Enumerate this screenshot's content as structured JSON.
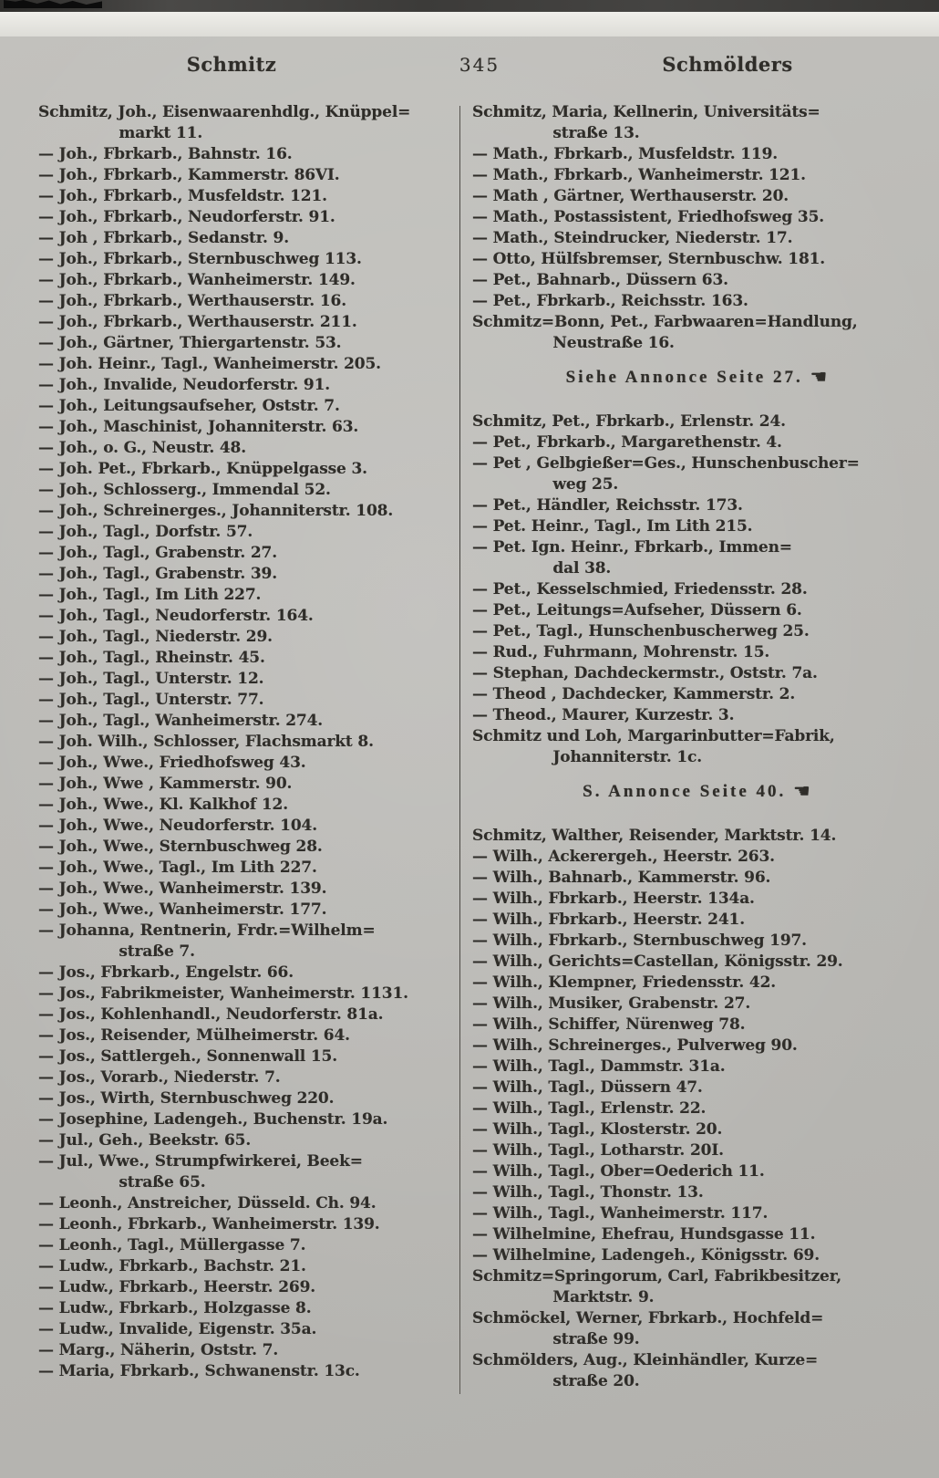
{
  "header": {
    "left_keyword": "Schmitz",
    "page_number": "345",
    "right_keyword": "Schmölders"
  },
  "annonce_icon": "☚",
  "columns": [
    {
      "entries": [
        {
          "text": "Schmitz, Joh., Eisenwaarenhdlg., Knüppel=\nmarkt 11."
        },
        {
          "text": "— Joh., Fbrkarb., Bahnstr. 16."
        },
        {
          "text": "— Joh., Fbrkarb., Kammerstr. 86VI."
        },
        {
          "text": "— Joh., Fbrkarb., Musfeldstr. 121."
        },
        {
          "text": "— Joh., Fbrkarb., Neudorferstr. 91."
        },
        {
          "text": "— Joh , Fbrkarb., Sedanstr. 9."
        },
        {
          "text": "— Joh., Fbrkarb., Sternbuschweg 113."
        },
        {
          "text": "— Joh., Fbrkarb., Wanheimerstr. 149."
        },
        {
          "text": "— Joh., Fbrkarb., Werthauserstr. 16."
        },
        {
          "text": "— Joh., Fbrkarb., Werthauserstr. 211."
        },
        {
          "text": "— Joh., Gärtner, Thiergartenstr. 53."
        },
        {
          "text": "— Joh. Heinr., Tagl., Wanheimerstr. 205."
        },
        {
          "text": "— Joh., Invalide, Neudorferstr. 91."
        },
        {
          "text": "— Joh., Leitungsaufseher, Oststr. 7."
        },
        {
          "text": "— Joh., Maschinist, Johanniterstr. 63."
        },
        {
          "text": "— Joh., o. G., Neustr. 48."
        },
        {
          "text": "— Joh. Pet., Fbrkarb., Knüppelgasse 3."
        },
        {
          "text": "— Joh., Schlosserg., Immendal 52."
        },
        {
          "text": "— Joh., Schreinerges., Johanniterstr. 108."
        },
        {
          "text": "— Joh., Tagl., Dorfstr. 57."
        },
        {
          "text": "— Joh., Tagl., Grabenstr. 27."
        },
        {
          "text": "— Joh., Tagl., Grabenstr. 39."
        },
        {
          "text": "— Joh., Tagl., Im Lith 227."
        },
        {
          "text": "— Joh., Tagl., Neudorferstr. 164."
        },
        {
          "text": "— Joh., Tagl., Niederstr. 29."
        },
        {
          "text": "— Joh., Tagl., Rheinstr. 45."
        },
        {
          "text": "— Joh., Tagl., Unterstr. 12."
        },
        {
          "text": "— Joh., Tagl., Unterstr. 77."
        },
        {
          "text": "— Joh., Tagl., Wanheimerstr. 274."
        },
        {
          "text": "— Joh. Wilh., Schlosser, Flachsmarkt 8."
        },
        {
          "text": "— Joh., Wwe., Friedhofsweg 43."
        },
        {
          "text": "— Joh., Wwe , Kammerstr. 90."
        },
        {
          "text": "— Joh., Wwe., Kl. Kalkhof 12."
        },
        {
          "text": "— Joh., Wwe., Neudorferstr. 104."
        },
        {
          "text": "— Joh., Wwe., Sternbuschweg 28."
        },
        {
          "text": "— Joh., Wwe., Tagl., Im Lith 227."
        },
        {
          "text": "— Joh., Wwe., Wanheimerstr. 139."
        },
        {
          "text": "— Joh., Wwe., Wanheimerstr. 177."
        },
        {
          "text": "— Johanna, Rentnerin, Frdr.=Wilhelm=\nstraße 7."
        },
        {
          "text": "— Jos., Fbrkarb., Engelstr. 66."
        },
        {
          "text": "— Jos., Fabrikmeister, Wanheimerstr. 1131."
        },
        {
          "text": "— Jos., Kohlenhandl., Neudorferstr. 81a."
        },
        {
          "text": "— Jos., Reisender, Mülheimerstr. 64."
        },
        {
          "text": "— Jos., Sattlergeh., Sonnenwall 15."
        },
        {
          "text": "— Jos., Vorarb., Niederstr. 7."
        },
        {
          "text": "— Jos., Wirth, Sternbuschweg 220."
        },
        {
          "text": "— Josephine, Ladengeh., Buchenstr. 19a."
        },
        {
          "text": "— Jul., Geh., Beekstr. 65."
        },
        {
          "text": "— Jul., Wwe., Strumpfwirkerei, Beek=\nstraße 65."
        },
        {
          "text": "— Leonh., Anstreicher, Düsseld. Ch. 94."
        },
        {
          "text": "— Leonh., Fbrkarb., Wanheimerstr. 139."
        },
        {
          "text": "— Leonh., Tagl., Müllergasse 7."
        },
        {
          "text": "— Ludw., Fbrkarb., Bachstr. 21."
        },
        {
          "text": "— Ludw., Fbrkarb., Heerstr. 269."
        },
        {
          "text": "— Ludw., Fbrkarb., Holzgasse 8."
        },
        {
          "text": "— Ludw., Invalide, Eigenstr. 35a."
        },
        {
          "text": "— Marg., Näherin, Oststr. 7."
        },
        {
          "text": "— Maria, Fbrkarb., Schwanenstr. 13c."
        }
      ]
    },
    {
      "entries": [
        {
          "text": "Schmitz, Maria, Kellnerin, Universitäts=\nstraße 13."
        },
        {
          "text": "— Math., Fbrkarb., Musfeldstr. 119."
        },
        {
          "text": "— Math., Fbrkarb., Wanheimerstr. 121."
        },
        {
          "text": "— Math , Gärtner, Werthauserstr. 20."
        },
        {
          "text": "— Math., Postassistent, Friedhofsweg 35."
        },
        {
          "text": "— Math., Steindrucker, Niederstr. 17."
        },
        {
          "text": "— Otto, Hülfsbremser, Sternbuschw. 181."
        },
        {
          "text": "— Pet., Bahnarb., Düssern 63."
        },
        {
          "text": "— Pet., Fbrkarb., Reichsstr. 163."
        },
        {
          "text": "Schmitz=Bonn, Pet., Farbwaaren=Handlung,\nNeustraße 16."
        },
        {
          "type": "annonce",
          "text": "Siehe Annonce Seite 27."
        },
        {
          "text": "Schmitz, Pet., Fbrkarb., Erlenstr. 24."
        },
        {
          "text": "— Pet., Fbrkarb., Margarethenstr. 4."
        },
        {
          "text": "— Pet , Gelbgießer=Ges., Hunschenbuscher=\nweg 25."
        },
        {
          "text": "— Pet., Händler, Reichsstr. 173."
        },
        {
          "text": "— Pet. Heinr., Tagl., Im Lith 215."
        },
        {
          "text": "— Pet. Ign. Heinr., Fbrkarb., Immen=\ndal 38."
        },
        {
          "text": "— Pet., Kesselschmied, Friedensstr. 28."
        },
        {
          "text": "— Pet., Leitungs=Aufseher, Düssern 6."
        },
        {
          "text": "— Pet., Tagl., Hunschenbuscherweg 25."
        },
        {
          "text": "— Rud., Fuhrmann, Mohrenstr. 15."
        },
        {
          "text": "— Stephan, Dachdeckermstr., Oststr. 7a."
        },
        {
          "text": "— Theod , Dachdecker, Kammerstr. 2."
        },
        {
          "text": "— Theod., Maurer, Kurzestr. 3."
        },
        {
          "text": "Schmitz und Loh, Margarinbutter=Fabrik,\nJohanniterstr. 1c."
        },
        {
          "type": "annonce",
          "text": "S. Annonce Seite 40."
        },
        {
          "text": "Schmitz, Walther, Reisender, Marktstr. 14."
        },
        {
          "text": "— Wilh., Ackerergeh., Heerstr. 263."
        },
        {
          "text": "— Wilh., Bahnarb., Kammerstr. 96."
        },
        {
          "text": "— Wilh., Fbrkarb., Heerstr. 134a."
        },
        {
          "text": "— Wilh., Fbrkarb., Heerstr. 241."
        },
        {
          "text": "— Wilh., Fbrkarb., Sternbuschweg 197."
        },
        {
          "text": "— Wilh., Gerichts=Castellan, Königsstr. 29."
        },
        {
          "text": "— Wilh., Klempner, Friedensstr. 42."
        },
        {
          "text": "— Wilh., Musiker, Grabenstr. 27."
        },
        {
          "text": "— Wilh., Schiffer, Nürenweg 78."
        },
        {
          "text": "— Wilh., Schreinerges., Pulverweg 90."
        },
        {
          "text": "— Wilh., Tagl., Dammstr. 31a."
        },
        {
          "text": "— Wilh., Tagl., Düssern 47."
        },
        {
          "text": "— Wilh., Tagl., Erlenstr. 22."
        },
        {
          "text": "— Wilh., Tagl., Klosterstr. 20."
        },
        {
          "text": "— Wilh., Tagl., Lotharstr. 20I."
        },
        {
          "text": "— Wilh., Tagl., Ober=Oederich 11."
        },
        {
          "text": "— Wilh., Tagl., Thonstr. 13."
        },
        {
          "text": "— Wilh., Tagl., Wanheimerstr. 117."
        },
        {
          "text": "— Wilhelmine, Ehefrau, Hundsgasse 11."
        },
        {
          "text": "— Wilhelmine, Ladengeh., Königsstr. 69."
        },
        {
          "text": "Schmitz=Springorum, Carl, Fabrikbesitzer,\nMarktstr. 9."
        },
        {
          "text": "Schmöckel, Werner, Fbrkarb., Hochfeld=\nstraße 99."
        },
        {
          "text": "Schmölders, Aug., Kleinhändler, Kurze=\nstraße 20."
        }
      ]
    }
  ]
}
